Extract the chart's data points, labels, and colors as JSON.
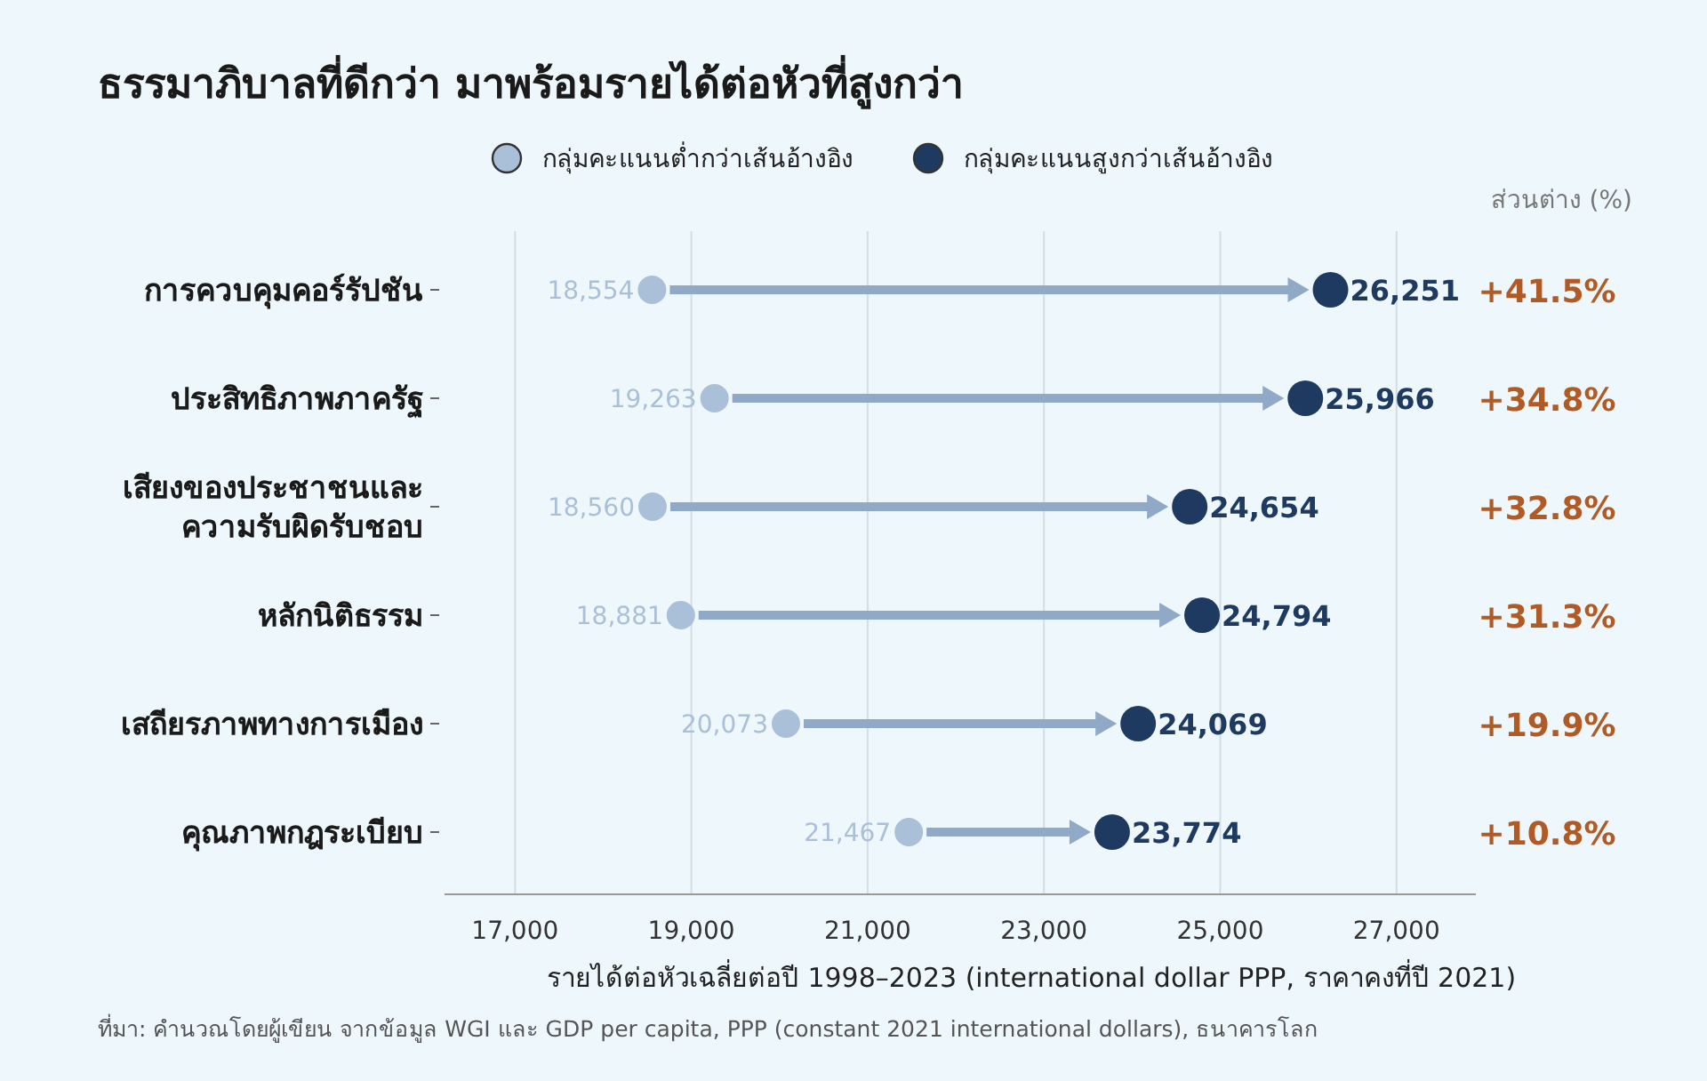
{
  "chart_data": {
    "type": "scatter",
    "orientation": "horizontal",
    "title": "ธรรมาภิบาลที่ดีกว่า มาพร้อมรายได้ต่อหัวที่สูงกว่า",
    "xlabel": "รายได้ต่อหัวเฉลี่ยต่อปี 1998–2023 (international dollar PPP, ราคาคงที่ปี 2021)",
    "categories": [
      "การควบคุมคอร์รัปชัน",
      "ประสิทธิภาพภาครัฐ",
      "เสียงของประชาชนและ\nความรับผิดรับชอบ",
      "หลักนิติธรรม",
      "เสถียรภาพทางการเมือง",
      "คุณภาพกฎระเบียบ"
    ],
    "series": [
      {
        "name": "กลุ่มคะแนนต่ำกว่าเส้นอ้างอิง",
        "color": "#aabfd8",
        "values": [
          18554,
          19263,
          18560,
          18881,
          20073,
          21467
        ],
        "value_labels": [
          "18,554",
          "19,263",
          "18,560",
          "18,881",
          "20,073",
          "21,467"
        ]
      },
      {
        "name": "กลุ่มคะแนนสูงกว่าเส้นอ้างอิง",
        "color": "#1f3a60",
        "values": [
          26251,
          25966,
          24654,
          24794,
          24069,
          23774
        ],
        "value_labels": [
          "26,251",
          "25,966",
          "24,654",
          "24,794",
          "24,069",
          "23,774"
        ]
      }
    ],
    "xlim": [
      16200,
      27900
    ],
    "xticks": [
      {
        "value": 17000,
        "label": "17,000"
      },
      {
        "value": 19000,
        "label": "19,000"
      },
      {
        "value": 21000,
        "label": "21,000"
      },
      {
        "value": 23000,
        "label": "23,000"
      },
      {
        "value": 25000,
        "label": "25,000"
      },
      {
        "value": 27000,
        "label": "27,000"
      }
    ],
    "grid": "x",
    "legend": "top",
    "marker": "circle",
    "annotations": [
      "ส่วนต่าง (%)",
      "+41.5%",
      "+34.8%",
      "+32.8%",
      "+31.3%",
      "+19.9%",
      "+10.8%",
      "ที่มา: คำนวณโดยผู้เขียน จากข้อมูล WGI และ GDP per capita, PPP (constant 2021 international dollars), ธนาคารโลก"
    ]
  }
}
